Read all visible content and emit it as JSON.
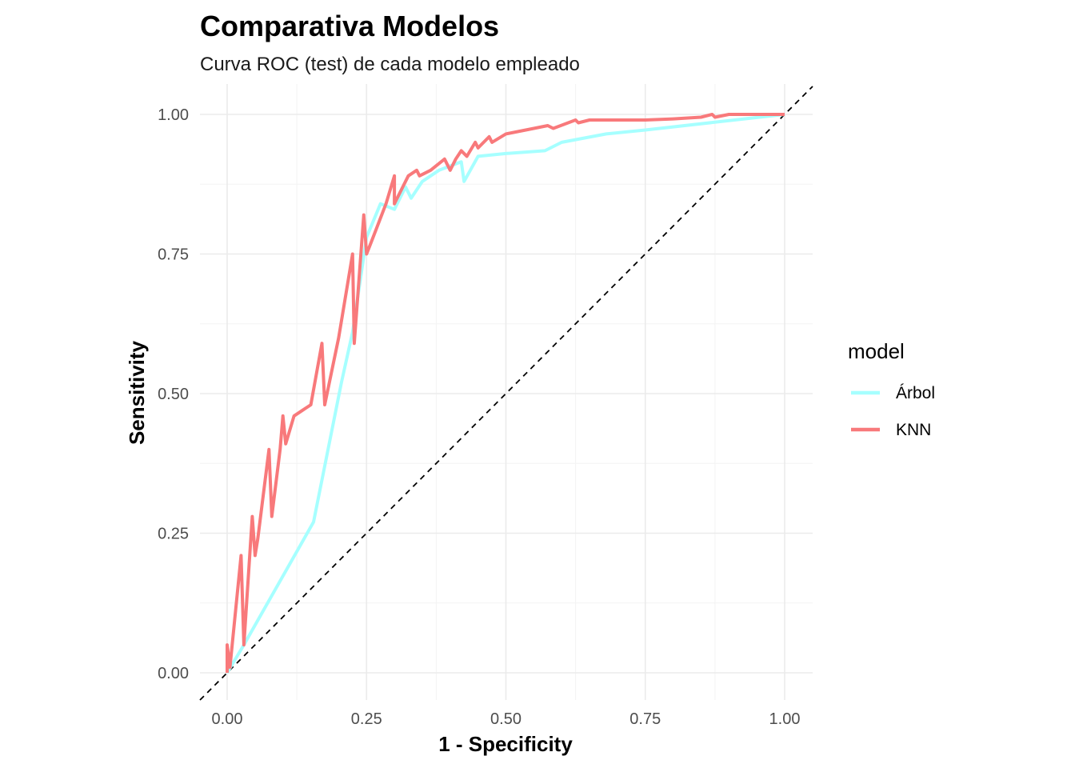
{
  "chart_data": {
    "type": "line",
    "title": "Comparativa Modelos",
    "subtitle": "Curva ROC (test) de cada modelo empleado",
    "xlabel": "1 - Specificity",
    "ylabel": "Sensitivity",
    "xlim": [
      0,
      1
    ],
    "ylim": [
      0,
      1
    ],
    "x_ticks": [
      "0.00",
      "0.25",
      "0.50",
      "0.75",
      "1.00"
    ],
    "y_ticks": [
      "0.00",
      "0.25",
      "0.50",
      "0.75",
      "1.00"
    ],
    "grid": true,
    "reference_line": "diagonal dashed",
    "legend": {
      "title": "model",
      "position": "right"
    },
    "series": [
      {
        "name": "Árbol",
        "color": "#a6ffff",
        "x": [
          0,
          0.03,
          0.155,
          0.205,
          0.225,
          0.25,
          0.275,
          0.3,
          0.32,
          0.33,
          0.35,
          0.38,
          0.42,
          0.425,
          0.45,
          0.5,
          0.57,
          0.6,
          0.68,
          0.75,
          1.0
        ],
        "y": [
          0,
          0.05,
          0.27,
          0.52,
          0.61,
          0.78,
          0.84,
          0.83,
          0.87,
          0.85,
          0.88,
          0.9,
          0.915,
          0.88,
          0.925,
          0.93,
          0.935,
          0.95,
          0.965,
          0.972,
          1.0
        ]
      },
      {
        "name": "KNN",
        "color": "#f8797b",
        "x": [
          0,
          0.0,
          0.005,
          0.025,
          0.03,
          0.045,
          0.05,
          0.055,
          0.075,
          0.08,
          0.095,
          0.1,
          0.105,
          0.12,
          0.135,
          0.15,
          0.17,
          0.175,
          0.2,
          0.225,
          0.228,
          0.245,
          0.25,
          0.258,
          0.285,
          0.3,
          0.3,
          0.325,
          0.34,
          0.345,
          0.365,
          0.39,
          0.4,
          0.41,
          0.42,
          0.43,
          0.445,
          0.45,
          0.47,
          0.475,
          0.5,
          0.55,
          0.575,
          0.585,
          0.625,
          0.63,
          0.65,
          0.7,
          0.75,
          0.8,
          0.85,
          0.87,
          0.875,
          0.9,
          1.0
        ],
        "y": [
          0,
          0.05,
          0.01,
          0.21,
          0.05,
          0.28,
          0.21,
          0.24,
          0.4,
          0.28,
          0.4,
          0.46,
          0.41,
          0.46,
          0.47,
          0.48,
          0.59,
          0.48,
          0.6,
          0.75,
          0.59,
          0.82,
          0.75,
          0.77,
          0.84,
          0.89,
          0.84,
          0.89,
          0.9,
          0.89,
          0.9,
          0.92,
          0.9,
          0.92,
          0.935,
          0.925,
          0.95,
          0.94,
          0.96,
          0.95,
          0.965,
          0.975,
          0.98,
          0.975,
          0.99,
          0.985,
          0.99,
          0.99,
          0.99,
          0.992,
          0.995,
          1.0,
          0.995,
          1.0,
          1.0
        ]
      }
    ]
  }
}
